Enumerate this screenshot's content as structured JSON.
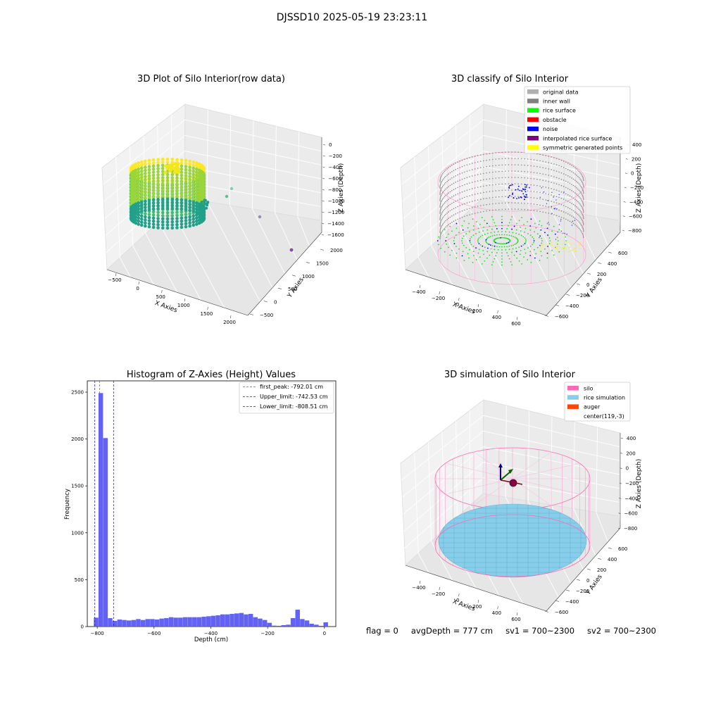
{
  "figure": {
    "suptitle": "DJSSD10 2025-05-19 23:23:11"
  },
  "status": {
    "flag": "flag = 0",
    "avgDepth": "avgDepth = 777 cm",
    "sv1": "sv1 = 700~2300",
    "sv2": "sv2 = 700~2300"
  },
  "colors": {
    "histogram_bar": "#5a5af5",
    "first_peak_line": "#e23a2a",
    "limit_lines": "#2424c8",
    "silo_wire": "#ff69b4",
    "rice_simulation": "#87ceeb",
    "auger": "#ff4500"
  },
  "chart_data": [
    {
      "type": "scatter",
      "subtype": "3d",
      "title": "3D Plot of Silo Interior(row data)",
      "xlabel": "X Axies",
      "ylabel": "Y Axies",
      "zlabel": "Z Axies (Depth)",
      "x_ticks": [
        "−500",
        "0",
        "500",
        "1000",
        "1500",
        "2000"
      ],
      "y_ticks": [
        "−500",
        "0",
        "500",
        "1000",
        "1500",
        "2000"
      ],
      "z_ticks": [
        "0",
        "−200",
        "−400",
        "−600",
        "−800",
        "−1000",
        "−1200",
        "−1400",
        "−1600"
      ],
      "colormap": "viridis",
      "outliers": [
        {
          "x": 1000,
          "y": 600,
          "z": -800
        },
        {
          "x": 1600,
          "y": 900,
          "z": -1100
        },
        {
          "x": 2000,
          "y": 1900,
          "z": -1500
        }
      ]
    },
    {
      "type": "scatter",
      "subtype": "3d",
      "title": "3D classify of Silo Interior",
      "xlabel": "X Axies",
      "ylabel": "Y Axies",
      "zlabel": "Z Axies (Depth)",
      "x_ticks": [
        "−400",
        "−200",
        "0",
        "200",
        "400",
        "600"
      ],
      "y_ticks": [
        "−600",
        "−400",
        "−200",
        "0",
        "200",
        "400",
        "600"
      ],
      "z_ticks": [
        "400",
        "200",
        "0",
        "−200",
        "−400",
        "−600",
        "−800"
      ],
      "legend_position": "top-right",
      "legend": [
        {
          "label": "original data",
          "color": "#b0b0b0"
        },
        {
          "label": "inner wall",
          "color": "#808080"
        },
        {
          "label": "rice surface",
          "color": "#00ff00"
        },
        {
          "label": "obstacle",
          "color": "#ff0000"
        },
        {
          "label": "noise",
          "color": "#0000ff"
        },
        {
          "label": "interpolated rice surface",
          "color": "#800080"
        },
        {
          "label": "symmetric generated points",
          "color": "#ffff00"
        }
      ]
    },
    {
      "type": "bar",
      "subtype": "histogram",
      "title": "Histogram of Z-Axies (Height) Values",
      "xlabel": "Depth (cm)",
      "ylabel": "Frequency",
      "xlim": [
        -835,
        40
      ],
      "ylim": [
        0,
        2620
      ],
      "x_ticks": [
        -800,
        -600,
        -400,
        -200,
        0
      ],
      "y_ticks": [
        0,
        500,
        1000,
        1500,
        2000,
        2500
      ],
      "bin_width": 16.5,
      "bins": [
        {
          "x": -812,
          "count": 95
        },
        {
          "x": -795.5,
          "count": 2490
        },
        {
          "x": -779,
          "count": 2010
        },
        {
          "x": -762.5,
          "count": 90
        },
        {
          "x": -746,
          "count": 60
        },
        {
          "x": -729.5,
          "count": 75
        },
        {
          "x": -713,
          "count": 70
        },
        {
          "x": -696.5,
          "count": 65
        },
        {
          "x": -680,
          "count": 70
        },
        {
          "x": -663.5,
          "count": 80
        },
        {
          "x": -647,
          "count": 70
        },
        {
          "x": -630.5,
          "count": 80
        },
        {
          "x": -614,
          "count": 80
        },
        {
          "x": -597.5,
          "count": 75
        },
        {
          "x": -581,
          "count": 85
        },
        {
          "x": -564.5,
          "count": 90
        },
        {
          "x": -548,
          "count": 100
        },
        {
          "x": -531.5,
          "count": 95
        },
        {
          "x": -515,
          "count": 95
        },
        {
          "x": -498.5,
          "count": 100
        },
        {
          "x": -482,
          "count": 100
        },
        {
          "x": -465.5,
          "count": 100
        },
        {
          "x": -449,
          "count": 100
        },
        {
          "x": -432.5,
          "count": 105
        },
        {
          "x": -416,
          "count": 110
        },
        {
          "x": -399.5,
          "count": 115
        },
        {
          "x": -383,
          "count": 120
        },
        {
          "x": -366.5,
          "count": 130
        },
        {
          "x": -350,
          "count": 130
        },
        {
          "x": -333.5,
          "count": 135
        },
        {
          "x": -317,
          "count": 140
        },
        {
          "x": -300.5,
          "count": 145
        },
        {
          "x": -284,
          "count": 130
        },
        {
          "x": -267.5,
          "count": 135
        },
        {
          "x": -251,
          "count": 100
        },
        {
          "x": -234.5,
          "count": 85
        },
        {
          "x": -218,
          "count": 70
        },
        {
          "x": -201.5,
          "count": 40
        },
        {
          "x": -185,
          "count": 10
        },
        {
          "x": -168.5,
          "count": 8
        },
        {
          "x": -152,
          "count": 15
        },
        {
          "x": -135.5,
          "count": 20
        },
        {
          "x": -119,
          "count": 90
        },
        {
          "x": -102.5,
          "count": 180
        },
        {
          "x": -86,
          "count": 80
        },
        {
          "x": -69.5,
          "count": 65
        },
        {
          "x": -53,
          "count": 30
        },
        {
          "x": -36.5,
          "count": 20
        },
        {
          "x": -20,
          "count": 8
        },
        {
          "x": -3.5,
          "count": 45
        }
      ],
      "vlines": [
        {
          "label": "first_peak: -792.01 cm",
          "x": -792.01,
          "color": "#e23a2a"
        },
        {
          "label": "Upper_limit: -742.53 cm",
          "x": -742.53,
          "color": "#2424c8"
        },
        {
          "label": "Lower_limit: -808.51 cm",
          "x": -808.51,
          "color": "#2424c8"
        }
      ],
      "legend_position": "top-right"
    },
    {
      "type": "scatter",
      "subtype": "3d",
      "title": "3D simulation of Silo Interior",
      "xlabel": "X Axies",
      "ylabel": "Y Axies",
      "zlabel": "Z Axies (Depth)",
      "x_ticks": [
        "−400",
        "−200",
        "0",
        "200",
        "400",
        "600"
      ],
      "y_ticks": [
        "−600",
        "−400",
        "−200",
        "0",
        "200",
        "400",
        "600"
      ],
      "z_ticks": [
        "400",
        "200",
        "0",
        "−200",
        "−400",
        "−600",
        "−800"
      ],
      "legend_position": "top-right",
      "legend": [
        {
          "label": "silo",
          "color": "#ff69b4"
        },
        {
          "label": "rice simulation",
          "color": "#87ceeb"
        },
        {
          "label": "auger",
          "color": "#ff4500"
        },
        {
          "label": "center(119,-3)",
          "color": ""
        }
      ]
    }
  ]
}
